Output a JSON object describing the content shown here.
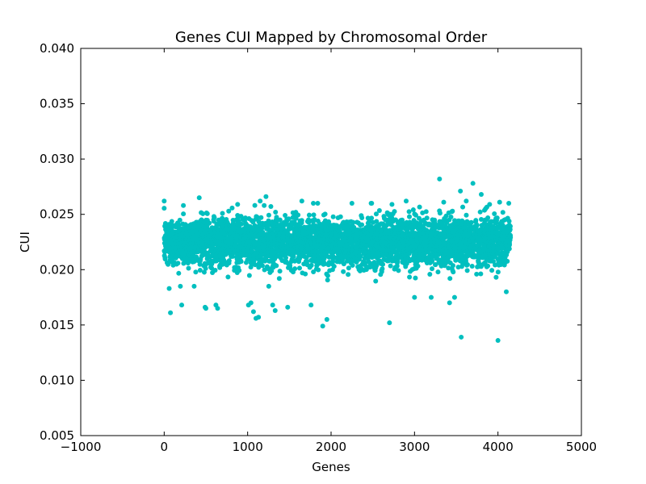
{
  "chart_data": {
    "type": "scatter",
    "title": "Genes CUI Mapped by Chromosomal Order",
    "xlabel": "Genes",
    "ylabel": "CUI",
    "xlim": [
      -1000,
      5000
    ],
    "ylim": [
      0.005,
      0.04
    ],
    "xticks": [
      -1000,
      0,
      1000,
      2000,
      3000,
      4000,
      5000
    ],
    "xtick_labels": [
      "−1000",
      "0",
      "1000",
      "2000",
      "3000",
      "4000",
      "5000"
    ],
    "yticks": [
      0.005,
      0.01,
      0.015,
      0.02,
      0.025,
      0.03,
      0.035,
      0.04
    ],
    "ytick_labels": [
      "0.005",
      "0.010",
      "0.015",
      "0.020",
      "0.025",
      "0.030",
      "0.035",
      "0.040"
    ],
    "grid": false,
    "legend": "none",
    "series": [
      {
        "color": "#00bfbf",
        "n_points": 4150,
        "x_range": [
          0,
          4150
        ],
        "typical_range": [
          0.019,
          0.026
        ],
        "center": 0.0225,
        "points": [
          [
            0,
            0.0262
          ],
          [
            60,
            0.0183
          ],
          [
            75,
            0.0161
          ],
          [
            210,
            0.0168
          ],
          [
            230,
            0.0258
          ],
          [
            420,
            0.0265
          ],
          [
            490,
            0.0166
          ],
          [
            500,
            0.0165
          ],
          [
            620,
            0.0168
          ],
          [
            640,
            0.0165
          ],
          [
            880,
            0.0259
          ],
          [
            1010,
            0.0168
          ],
          [
            1040,
            0.017
          ],
          [
            1070,
            0.0162
          ],
          [
            1100,
            0.0156
          ],
          [
            1130,
            0.0157
          ],
          [
            1150,
            0.0262
          ],
          [
            1220,
            0.0266
          ],
          [
            1300,
            0.0168
          ],
          [
            1330,
            0.0163
          ],
          [
            1480,
            0.0166
          ],
          [
            1650,
            0.0262
          ],
          [
            1760,
            0.0168
          ],
          [
            1840,
            0.026
          ],
          [
            1900,
            0.0149
          ],
          [
            1950,
            0.0155
          ],
          [
            2250,
            0.026
          ],
          [
            2480,
            0.026
          ],
          [
            2700,
            0.0152
          ],
          [
            2730,
            0.0259
          ],
          [
            2900,
            0.0262
          ],
          [
            3000,
            0.0175
          ],
          [
            3200,
            0.0175
          ],
          [
            3300,
            0.0282
          ],
          [
            3350,
            0.0261
          ],
          [
            3420,
            0.017
          ],
          [
            3480,
            0.0175
          ],
          [
            3550,
            0.0271
          ],
          [
            3560,
            0.0139
          ],
          [
            3620,
            0.0262
          ],
          [
            3700,
            0.0278
          ],
          [
            3800,
            0.0268
          ],
          [
            3900,
            0.0259
          ],
          [
            4000,
            0.0136
          ],
          [
            4020,
            0.0261
          ],
          [
            4100,
            0.018
          ],
          [
            4130,
            0.026
          ]
        ]
      }
    ]
  }
}
